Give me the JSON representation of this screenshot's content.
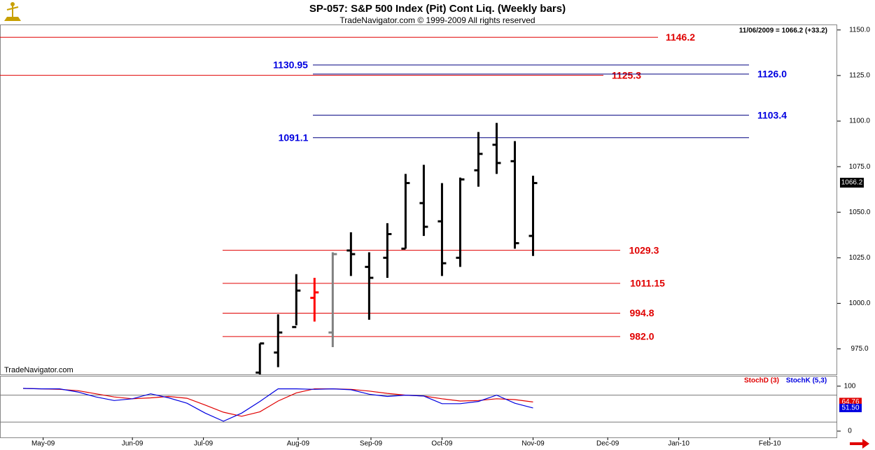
{
  "chart_data": [
    {
      "type": "ohlc",
      "title": "SP-057:  S&P 500 Index (Pit) Cont Liq.  (Weekly bars)",
      "subtitle": "TradeNavigator.com © 1999-2009 All rights reserved",
      "quote": "11/06/2009 = 1066.2 (+33.2)",
      "watermark": "TradeNavigator.com",
      "x": [
        13,
        14,
        15,
        16,
        17,
        18,
        19,
        20,
        21,
        22,
        23,
        24,
        25,
        26,
        27,
        28
      ],
      "open": [
        962,
        973,
        987,
        1003,
        984,
        1029,
        1020,
        1025,
        1030,
        1055,
        1045,
        1025,
        1073,
        1087,
        1078,
        1037
      ],
      "high": [
        978,
        994,
        1016,
        1014,
        1028,
        1039,
        1028,
        1044,
        1071,
        1076,
        1066,
        1069,
        1094,
        1099,
        1089,
        1070
      ],
      "low": [
        961,
        965,
        988,
        990,
        976,
        1015,
        991,
        1014,
        1030,
        1037,
        1015,
        1020,
        1064,
        1071,
        1030,
        1026
      ],
      "close": [
        978,
        984,
        1007,
        1006,
        1027,
        1027,
        1014,
        1038,
        1066,
        1042,
        1022,
        1068,
        1082,
        1077,
        1033,
        1066
      ],
      "bar_colors": [
        "#000000",
        "#000000",
        "#000000",
        "#ff0000",
        "#808080",
        "#000000",
        "#000000",
        "#000000",
        "#000000",
        "#000000",
        "#000000",
        "#000000",
        "#000000",
        "#000000",
        "#000000",
        "#000000"
      ],
      "xlim": [
        -1.27,
        44.7
      ],
      "ylim": [
        961,
        1153
      ],
      "yticks": [
        {
          "value": 975,
          "label": "975.0"
        },
        {
          "value": 1000,
          "label": "1000.0"
        },
        {
          "value": 1025,
          "label": "1025.0"
        },
        {
          "value": 1050,
          "label": "1050.0"
        },
        {
          "value": 1075,
          "label": "1075.0"
        },
        {
          "value": 1100,
          "label": "1100.0"
        },
        {
          "value": 1125,
          "label": "1125.0"
        },
        {
          "value": 1150,
          "label": "1150.0"
        }
      ],
      "last_price": 1066.2,
      "levels": [
        {
          "value": 1146.2,
          "color": "#e00000"
        },
        {
          "value": 1130.95,
          "color": "#0000e0"
        },
        {
          "value": 1125.3,
          "color": "#e00000"
        },
        {
          "value": {
            "value": 1126,
            "label": "1126.0"
          },
          "color": "#0000e0"
        },
        {
          "value": 1103.4,
          "color": "#0000e0"
        },
        {
          "value": 1091.1,
          "color": "#0000e0"
        },
        {
          "value": 1029.3,
          "color": "#e00000"
        },
        {
          "value": 1011.15,
          "color": "#e00000"
        },
        {
          "value": 994.8,
          "color": "#e00000"
        },
        {
          "value": {
            "value": 982,
            "label": "982.0"
          },
          "color": "#e00000"
        }
      ]
    },
    {
      "type": "line",
      "x": [
        0,
        1,
        2,
        3,
        4,
        5,
        6,
        7,
        8,
        9,
        10,
        11,
        12,
        13,
        14,
        15,
        16,
        17,
        18,
        19,
        20,
        21,
        22,
        23,
        24,
        25,
        26,
        27,
        28
      ],
      "series": [
        {
          "name": "StochD (3)",
          "color": "#e00000",
          "last_value_label": "64.76",
          "values": [
            95,
            94,
            93,
            90,
            83,
            76,
            72,
            74,
            77,
            73,
            58,
            42,
            33,
            43,
            67,
            85,
            94,
            94,
            93,
            89,
            84,
            80,
            78,
            72,
            67,
            68,
            72,
            70,
            64.76
          ]
        },
        {
          "name": "StochK (5,3)",
          "color": "#0000e0",
          "last_value_label": "51.50",
          "values": [
            95,
            94,
            94,
            87,
            76,
            68,
            72,
            83,
            74,
            62,
            40,
            22,
            40,
            66,
            94,
            94,
            93,
            94,
            92,
            82,
            77,
            80,
            78,
            61,
            61,
            66,
            80,
            62,
            51.5
          ]
        }
      ],
      "xlim": [
        -1.27,
        44.7
      ],
      "ylim": [
        -14,
        123
      ],
      "yticks": [
        0,
        100
      ],
      "ref_lines": [
        20,
        80
      ],
      "xticks": [
        {
          "value": 1.1,
          "label": "May-09"
        },
        {
          "value": 6,
          "label": "Jun-09"
        },
        {
          "value": 9.9,
          "label": "Jul-09"
        },
        {
          "value": 15.1,
          "label": "Aug-09"
        },
        {
          "value": 19.1,
          "label": "Sep-09"
        },
        {
          "value": 23,
          "label": "Oct-09"
        },
        {
          "value": 28,
          "label": "Nov-09"
        },
        {
          "value": 32.1,
          "label": "Dec-09"
        },
        {
          "value": 36,
          "label": "Jan-10"
        },
        {
          "value": 41,
          "label": "Feb-10"
        }
      ]
    }
  ]
}
